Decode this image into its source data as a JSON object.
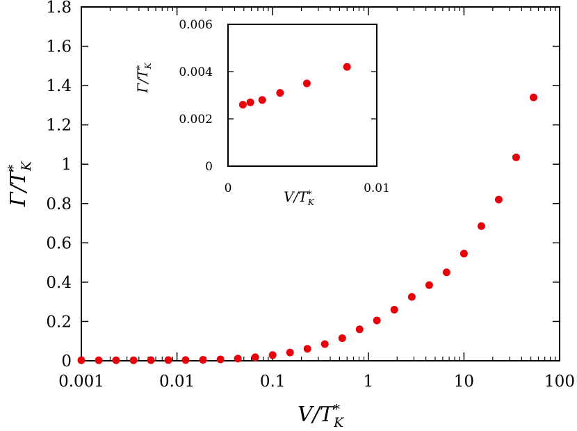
{
  "chart_data": [
    {
      "type": "scatter",
      "title": "",
      "xlabel": {
        "main": "V/T",
        "sub": "K",
        "sup": "*"
      },
      "ylabel": {
        "main": "Γ/T",
        "sub": "K",
        "sup": "*"
      },
      "xscale": "log",
      "xlim": [
        0.001,
        100
      ],
      "ylim": [
        0,
        1.8
      ],
      "x_ticks": [
        0.001,
        0.01,
        0.1,
        1,
        10,
        100
      ],
      "x_tick_labels": [
        "0.001",
        "0.01",
        "0.1",
        "1",
        "10",
        "100"
      ],
      "y_ticks": [
        0,
        0.2,
        0.4,
        0.6,
        0.8,
        1,
        1.2,
        1.4,
        1.6,
        1.8
      ],
      "y_tick_labels": [
        "0",
        "0.2",
        "0.4",
        "0.6",
        "0.8",
        "1",
        "1.2",
        "1.4",
        "1.6",
        "1.8"
      ],
      "grid": false,
      "marker_color": "#e8000b",
      "series": [
        {
          "x": [
            0.001,
            0.00152,
            0.00231,
            0.00351,
            0.00534,
            0.00811,
            0.0123,
            0.0187,
            0.0285,
            0.0433,
            0.0658,
            0.1,
            0.152,
            0.231,
            0.351,
            0.534,
            0.811,
            1.23,
            1.87,
            2.85,
            4.33,
            6.58,
            10.0,
            15.2,
            23.1,
            35.1,
            53.4
          ],
          "y": [
            0.0026,
            0.0026,
            0.0027,
            0.0028,
            0.003,
            0.0035,
            0.004,
            0.005,
            0.007,
            0.011,
            0.018,
            0.029,
            0.042,
            0.061,
            0.085,
            0.115,
            0.16,
            0.205,
            0.26,
            0.325,
            0.385,
            0.45,
            0.545,
            0.685,
            0.82,
            1.035,
            1.34
          ]
        }
      ]
    },
    {
      "type": "scatter",
      "title": "",
      "xlabel": {
        "main": "V/T",
        "sub": "K",
        "sup": "*"
      },
      "ylabel": {
        "main": "Γ/T",
        "sub": "K",
        "sup": "*"
      },
      "xlim": [
        0,
        0.01
      ],
      "ylim": [
        0,
        0.006
      ],
      "x_ticks": [
        0,
        0.01
      ],
      "x_tick_labels": [
        "0",
        "0.01"
      ],
      "y_ticks": [
        0,
        0.002,
        0.004,
        0.006
      ],
      "y_tick_labels": [
        "0",
        "0.002",
        "0.004",
        "0.006"
      ],
      "grid": false,
      "marker_color": "#e8000b",
      "series": [
        {
          "x": [
            0.001,
            0.0015,
            0.0023,
            0.0035,
            0.0053,
            0.008
          ],
          "y": [
            0.0026,
            0.0027,
            0.0028,
            0.0031,
            0.0035,
            0.0042
          ]
        }
      ]
    }
  ]
}
